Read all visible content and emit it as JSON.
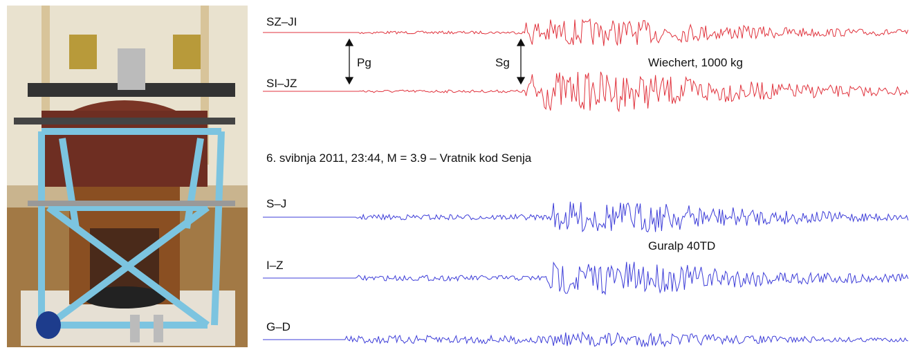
{
  "wiechert": {
    "instrument": "Wiechert, 1000 kg",
    "channels": [
      "SZ–JI",
      "SI–JZ"
    ],
    "phases": [
      "Pg",
      "Sg"
    ]
  },
  "caption": "6. svibnja 2011, 23:44, M = 3.9 – Vratnik kod Senja",
  "guralp": {
    "instrument": "Guralp 40TD",
    "channels": [
      "S–J",
      "I–Z",
      "G–D"
    ]
  }
}
